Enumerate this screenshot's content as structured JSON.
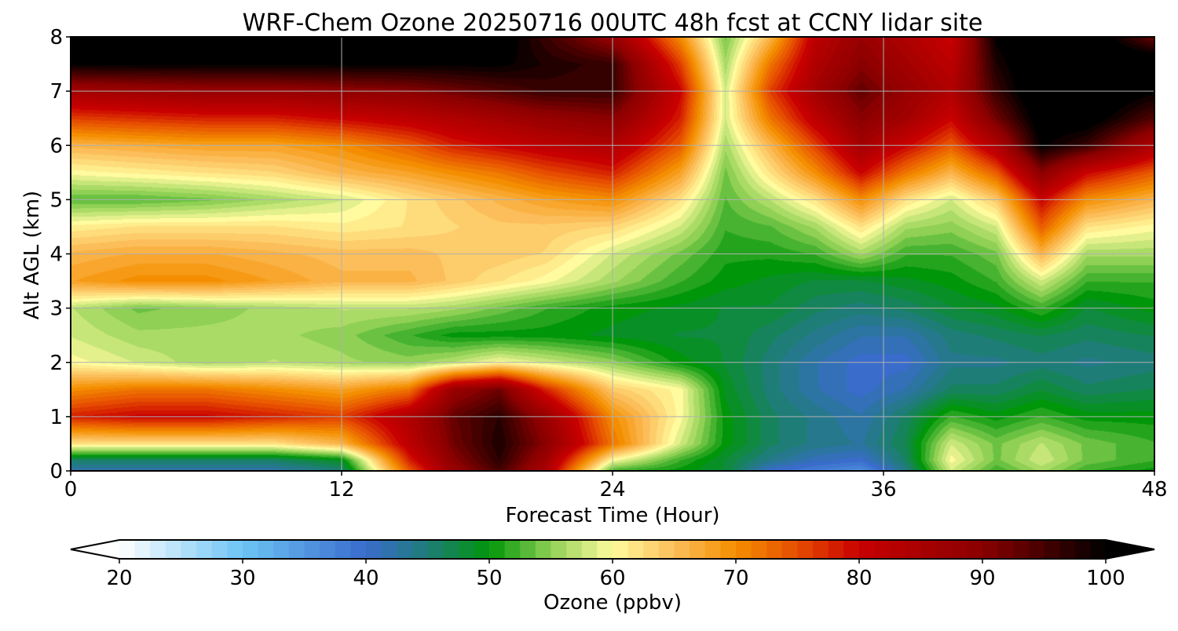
{
  "chart_data": {
    "type": "heatmap",
    "subtype": "filled-contour",
    "title": "WRF-Chem Ozone  20250716 00UTC 48h fcst at CCNY lidar site",
    "xlabel": "Forecast Time (Hour)",
    "ylabel": "Alt AGL (km)",
    "xlim": [
      0,
      48
    ],
    "ylim": [
      0,
      8
    ],
    "x_ticks": [
      0,
      12,
      24,
      36,
      48
    ],
    "y_ticks": [
      0,
      1,
      2,
      3,
      4,
      5,
      6,
      7,
      8
    ],
    "grid": true,
    "colorbar": {
      "label": "Ozone  (ppbv)",
      "range": [
        20,
        100
      ],
      "ticks": [
        20,
        30,
        40,
        50,
        60,
        70,
        80,
        90,
        100
      ],
      "extend": "both",
      "orientation": "horizontal",
      "stops": [
        {
          "value": 20,
          "color": "#ffffff"
        },
        {
          "value": 30,
          "color": "#6cc3f4"
        },
        {
          "value": 40,
          "color": "#3a6ccc"
        },
        {
          "value": 45,
          "color": "#1f7d78"
        },
        {
          "value": 50,
          "color": "#00960a"
        },
        {
          "value": 55,
          "color": "#8fd055"
        },
        {
          "value": 60,
          "color": "#fffb9e"
        },
        {
          "value": 65,
          "color": "#fcbe5a"
        },
        {
          "value": 70,
          "color": "#f48e00"
        },
        {
          "value": 75,
          "color": "#e64d00"
        },
        {
          "value": 80,
          "color": "#c80000"
        },
        {
          "value": 90,
          "color": "#8a0000"
        },
        {
          "value": 100,
          "color": "#000000"
        }
      ]
    },
    "x": [
      0,
      3,
      6,
      9,
      12,
      15,
      17,
      19,
      21,
      24,
      27,
      29,
      31,
      33,
      35,
      37,
      39,
      41,
      43,
      45,
      48
    ],
    "y": [
      0,
      0.2,
      0.5,
      1,
      1.5,
      2,
      2.5,
      3,
      3.5,
      4,
      4.5,
      5,
      5.5,
      6,
      6.5,
      7,
      7.5,
      8
    ],
    "z": [
      [
        42,
        42,
        42,
        42,
        45,
        74,
        88,
        95,
        85,
        52,
        50,
        48,
        40,
        38,
        36,
        44,
        58,
        52,
        56,
        52,
        50
      ],
      [
        46,
        46,
        46,
        46,
        49,
        78,
        90,
        97,
        87,
        60,
        52,
        48,
        44,
        41,
        40,
        46,
        60,
        54,
        58,
        54,
        52
      ],
      [
        62,
        62,
        62,
        62,
        66,
        82,
        92,
        98,
        90,
        72,
        58,
        50,
        46,
        44,
        43,
        47,
        58,
        54,
        57,
        54,
        52
      ],
      [
        78,
        80,
        80,
        78,
        76,
        84,
        93,
        97,
        88,
        70,
        60,
        50,
        46,
        44,
        42,
        46,
        52,
        50,
        52,
        50,
        50
      ],
      [
        70,
        72,
        72,
        70,
        68,
        72,
        88,
        92,
        78,
        64,
        60,
        49,
        45,
        42,
        40,
        42,
        46,
        46,
        48,
        46,
        47
      ],
      [
        60,
        58,
        56,
        57,
        56,
        55,
        57,
        60,
        58,
        55,
        50,
        48,
        45,
        42,
        40,
        40,
        44,
        44,
        45,
        44,
        45
      ],
      [
        58,
        56,
        56,
        56,
        55,
        52,
        50,
        50,
        50,
        49,
        48,
        48,
        46,
        44,
        42,
        42,
        45,
        46,
        47,
        46,
        47
      ],
      [
        57,
        54,
        55,
        56,
        57,
        57,
        56,
        54,
        52,
        50,
        49,
        48,
        48,
        46,
        45,
        46,
        48,
        49,
        52,
        48,
        50
      ],
      [
        68,
        70,
        70,
        68,
        66,
        66,
        64,
        62,
        60,
        56,
        52,
        50,
        49,
        48,
        48,
        49,
        50,
        52,
        58,
        52,
        52
      ],
      [
        66,
        67,
        67,
        66,
        65,
        65,
        64,
        64,
        63,
        58,
        54,
        51,
        51,
        52,
        56,
        52,
        52,
        54,
        66,
        56,
        56
      ],
      [
        61,
        62,
        62,
        62,
        61,
        62,
        63,
        64,
        64,
        63,
        58,
        52,
        53,
        56,
        62,
        56,
        55,
        58,
        74,
        62,
        60
      ],
      [
        53,
        53,
        54,
        56,
        58,
        62,
        64,
        66,
        68,
        70,
        62,
        53,
        57,
        62,
        70,
        62,
        58,
        64,
        80,
        70,
        66
      ],
      [
        60,
        61,
        62,
        63,
        66,
        68,
        70,
        72,
        75,
        78,
        68,
        54,
        62,
        70,
        80,
        72,
        66,
        74,
        90,
        80,
        74
      ],
      [
        66,
        67,
        68,
        68,
        70,
        74,
        78,
        80,
        82,
        84,
        74,
        56,
        66,
        76,
        86,
        80,
        74,
        84,
        100,
        96,
        84
      ],
      [
        76,
        77,
        78,
        78,
        80,
        82,
        84,
        86,
        88,
        90,
        78,
        58,
        72,
        82,
        90,
        86,
        80,
        92,
        102,
        102,
        94
      ],
      [
        86,
        87,
        88,
        88,
        89,
        90,
        92,
        94,
        96,
        96,
        80,
        58,
        76,
        86,
        93,
        88,
        84,
        96,
        104,
        104,
        100
      ],
      [
        100,
        100,
        100,
        100,
        100,
        100,
        100,
        100,
        98,
        96,
        76,
        56,
        72,
        84,
        90,
        86,
        82,
        98,
        104,
        104,
        104
      ],
      [
        104,
        104,
        104,
        104,
        104,
        104,
        104,
        102,
        96,
        88,
        70,
        54,
        66,
        82,
        88,
        84,
        80,
        100,
        104,
        104,
        92
      ]
    ]
  }
}
